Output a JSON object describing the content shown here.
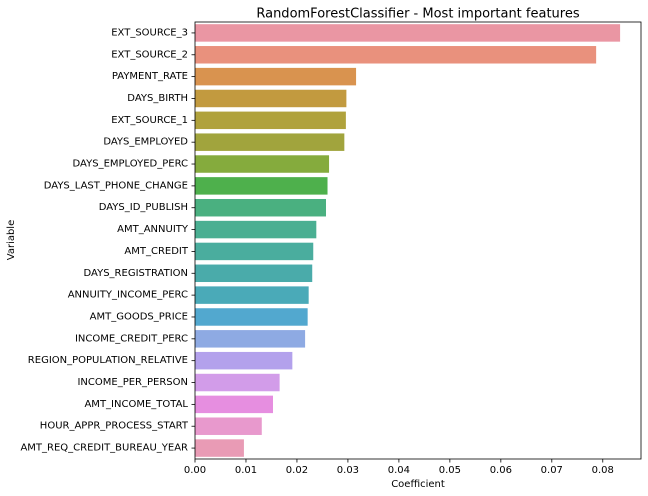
{
  "chart_data": {
    "type": "bar",
    "orientation": "horizontal",
    "title": "RandomForestClassifier - Most important features",
    "xlabel": "Coefficient",
    "ylabel": "Variable",
    "xlim": [
      0,
      0.0875
    ],
    "xticks": [
      "0.00",
      "0.01",
      "0.02",
      "0.03",
      "0.04",
      "0.05",
      "0.06",
      "0.07",
      "0.08"
    ],
    "grid": false,
    "legend": "none",
    "categories": [
      "EXT_SOURCE_3",
      "EXT_SOURCE_2",
      "PAYMENT_RATE",
      "DAYS_BIRTH",
      "EXT_SOURCE_1",
      "DAYS_EMPLOYED",
      "DAYS_EMPLOYED_PERC",
      "DAYS_LAST_PHONE_CHANGE",
      "DAYS_ID_PUBLISH",
      "AMT_ANNUITY",
      "AMT_CREDIT",
      "DAYS_REGISTRATION",
      "ANNUITY_INCOME_PERC",
      "AMT_GOODS_PRICE",
      "INCOME_CREDIT_PERC",
      "REGION_POPULATION_RELATIVE",
      "INCOME_PER_PERSON",
      "AMT_INCOME_TOTAL",
      "HOUR_APPR_PROCESS_START",
      "AMT_REQ_CREDIT_BUREAU_YEAR"
    ],
    "values": [
      0.0834,
      0.0787,
      0.0316,
      0.0297,
      0.0296,
      0.0293,
      0.0263,
      0.026,
      0.0257,
      0.0238,
      0.0232,
      0.023,
      0.0223,
      0.0221,
      0.0216,
      0.0191,
      0.0166,
      0.0153,
      0.0131,
      0.0096
    ],
    "colors": [
      "#ea96a3",
      "#e9917d",
      "#d9934f",
      "#c29a3f",
      "#b0a23c",
      "#a1a43d",
      "#85ab3d",
      "#4eb04c",
      "#4ab080",
      "#4aaf92",
      "#4aad9e",
      "#4aabaa",
      "#4aaab8",
      "#52a8cf",
      "#8eaae3",
      "#b3a1ec",
      "#d29ce9",
      "#e68ee0",
      "#e899cd",
      "#e99bb5"
    ]
  }
}
